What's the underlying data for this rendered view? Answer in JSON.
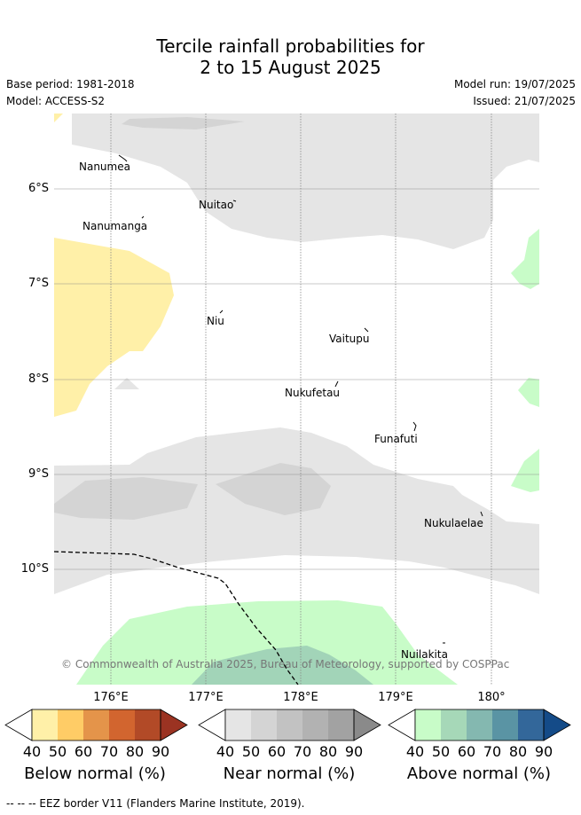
{
  "title_line1": "Tercile rainfall probabilities for",
  "title_line2": "2 to 15 August 2025",
  "base_period": "Base period: 1981-2018",
  "model": "Model: ACCESS-S2",
  "model_run": "Model run: 19/07/2025",
  "issued": "Issued: 21/07/2025",
  "lat_labels": [
    "6°S",
    "7°S",
    "8°S",
    "9°S",
    "10°S"
  ],
  "lon_labels": [
    "176°E",
    "177°E",
    "178°E",
    "179°E",
    "180°"
  ],
  "islands": [
    "Nanumea",
    "Nuitao",
    "Nanumanga",
    "Niu",
    "Vaitupu",
    "Nukufetau",
    "Funafuti",
    "Nukulaelae",
    "Nuilakita"
  ],
  "copyright": "© Commonwealth of Australia 2025, Bureau of Meteorology, supported by COSPPac",
  "colorbars": {
    "below": {
      "title": "Below normal (%)",
      "ticks": [
        "40",
        "50",
        "60",
        "70",
        "80",
        "90"
      ],
      "colors": [
        "#fff0a8",
        "#ffcc66",
        "#e4944a",
        "#d2652f",
        "#b24a27",
        "#9b3322"
      ]
    },
    "near": {
      "title": "Near normal (%)",
      "ticks": [
        "40",
        "50",
        "60",
        "70",
        "80",
        "90"
      ],
      "colors": [
        "#e5e5e5",
        "#d4d4d4",
        "#c2c2c2",
        "#b2b2b2",
        "#a2a2a2",
        "#8a8a8a"
      ]
    },
    "above": {
      "title": "Above normal (%)",
      "ticks": [
        "40",
        "50",
        "60",
        "70",
        "80",
        "90"
      ],
      "colors": [
        "#c8fcc8",
        "#a6d8b8",
        "#84b8b0",
        "#5a94a4",
        "#33679a",
        "#144b88"
      ]
    }
  },
  "footer": "-- -- -- EEZ border V11 (Flanders Marine Institute, 2019)."
}
